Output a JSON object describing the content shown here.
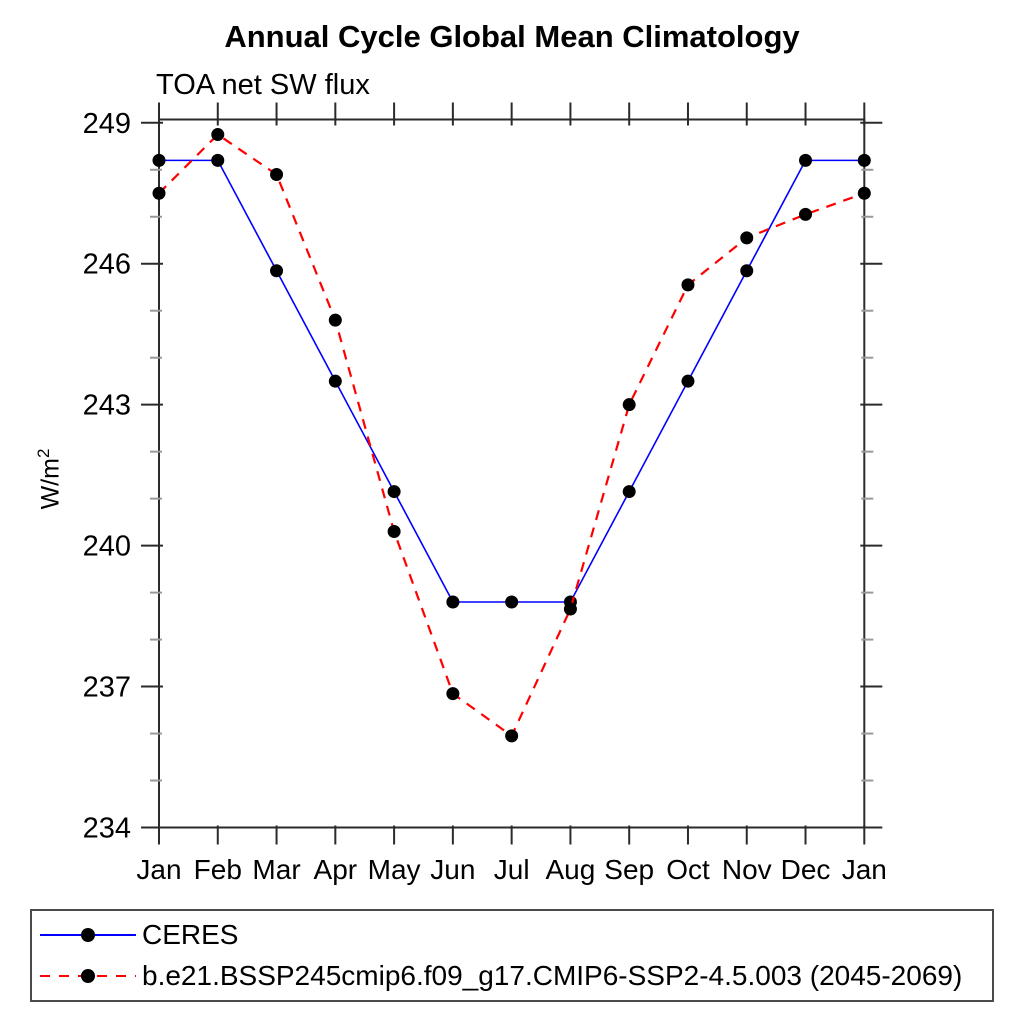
{
  "chart_data": {
    "type": "line",
    "title": "Annual Cycle Global Mean Climatology",
    "subtitle": "TOA net SW flux",
    "ylabel_base": "W/m",
    "ylabel_sup": "2",
    "categories": [
      "Jan",
      "Feb",
      "Mar",
      "Apr",
      "May",
      "Jun",
      "Jul",
      "Aug",
      "Sep",
      "Oct",
      "Nov",
      "Dec",
      "Jan"
    ],
    "series": [
      {
        "id": "ceres",
        "name": "CERES",
        "color": "#0000ff",
        "line_style": "solid",
        "marker": "dot",
        "values": [
          248.2,
          248.2,
          245.85,
          243.5,
          241.15,
          238.8,
          238.8,
          238.8,
          241.15,
          243.5,
          245.85,
          248.2,
          248.2
        ]
      },
      {
        "id": "cesm2-ssp245",
        "name": "b.e21.BSSP245cmip6.f09_g17.CMIP6-SSP2-4.5.003 (2045-2069)",
        "color": "#ff0000",
        "line_style": "dashed",
        "marker": "dot",
        "values": [
          247.5,
          248.75,
          247.9,
          244.8,
          240.3,
          236.85,
          235.95,
          238.65,
          243.0,
          245.55,
          246.55,
          247.05,
          247.5
        ]
      }
    ],
    "ylim": [
      234,
      249.07
    ],
    "y_major_ticks": [
      234,
      237,
      240,
      243,
      246,
      249
    ],
    "y_minor_interval": 1,
    "marker_color": "#000000",
    "grid": false,
    "legend_position": "bottom"
  }
}
